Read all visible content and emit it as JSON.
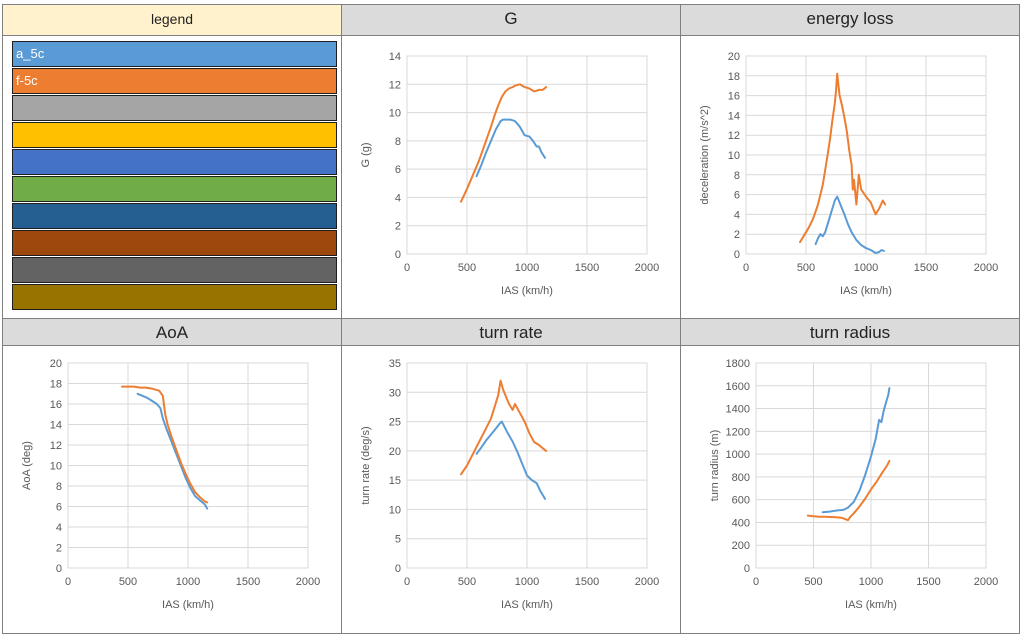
{
  "legend": {
    "header": "legend",
    "rows": [
      {
        "label": "a_5c",
        "color": "#5b9bd5"
      },
      {
        "label": "f-5c",
        "color": "#ed7d31"
      },
      {
        "label": "",
        "color": "#a5a5a5"
      },
      {
        "label": "",
        "color": "#ffc000"
      },
      {
        "label": "",
        "color": "#4472c4"
      },
      {
        "label": "",
        "color": "#70ad47"
      },
      {
        "label": "",
        "color": "#255e91"
      },
      {
        "label": "",
        "color": "#9e480e"
      },
      {
        "label": "",
        "color": "#636363"
      },
      {
        "label": "",
        "color": "#997300"
      }
    ]
  },
  "chart_data": [
    {
      "id": "g",
      "type": "line",
      "title": "G",
      "xlabel": "IAS (km/h)",
      "ylabel": "G (g)",
      "xlim": [
        0,
        2000
      ],
      "xticks": [
        0,
        500,
        1000,
        1500,
        2000
      ],
      "ylim": [
        0,
        14
      ],
      "yticks": [
        0,
        2,
        4,
        6,
        8,
        10,
        12,
        14
      ],
      "grid": true,
      "series": [
        {
          "name": "a_5c",
          "color": "#5b9bd5",
          "x": [
            580,
            620,
            660,
            700,
            740,
            780,
            800,
            830,
            860,
            900,
            940,
            980,
            1020,
            1050,
            1080,
            1100,
            1120,
            1150
          ],
          "y": [
            5.5,
            6.3,
            7.2,
            8.0,
            8.8,
            9.4,
            9.5,
            9.5,
            9.5,
            9.4,
            9.0,
            8.4,
            8.3,
            8.0,
            7.6,
            7.6,
            7.2,
            6.8
          ]
        },
        {
          "name": "f-5c",
          "color": "#ed7d31",
          "x": [
            450,
            500,
            550,
            600,
            650,
            700,
            730,
            760,
            790,
            820,
            850,
            880,
            900,
            940,
            980,
            1020,
            1060,
            1100,
            1130,
            1160
          ],
          "y": [
            3.7,
            4.6,
            5.6,
            6.6,
            7.8,
            9.0,
            9.8,
            10.5,
            11.1,
            11.5,
            11.7,
            11.8,
            11.9,
            12.0,
            11.8,
            11.7,
            11.5,
            11.6,
            11.6,
            11.8
          ]
        }
      ]
    },
    {
      "id": "energy",
      "type": "line",
      "title": "energy loss",
      "xlabel": "IAS (km/h)",
      "ylabel": "deceleration (m/s^2)",
      "xlim": [
        0,
        2000
      ],
      "xticks": [
        0,
        500,
        1000,
        1500,
        2000
      ],
      "ylim": [
        0,
        20
      ],
      "yticks": [
        0,
        2,
        4,
        6,
        8,
        10,
        12,
        14,
        16,
        18,
        20
      ],
      "grid": true,
      "series": [
        {
          "name": "a_5c",
          "color": "#5b9bd5",
          "x": [
            580,
            600,
            620,
            640,
            660,
            680,
            700,
            720,
            740,
            760,
            780,
            800,
            820,
            850,
            880,
            920,
            960,
            1000,
            1040,
            1080,
            1110,
            1130,
            1150
          ],
          "y": [
            1.0,
            1.6,
            2.0,
            1.8,
            2.2,
            3.0,
            3.8,
            4.6,
            5.4,
            5.8,
            5.2,
            4.6,
            4.0,
            3.0,
            2.2,
            1.4,
            0.9,
            0.6,
            0.4,
            0.1,
            0.2,
            0.4,
            0.3
          ]
        },
        {
          "name": "f-5c",
          "color": "#ed7d31",
          "x": [
            450,
            480,
            520,
            560,
            600,
            640,
            660,
            680,
            700,
            720,
            740,
            750,
            760,
            780,
            800,
            820,
            840,
            860,
            880,
            890,
            900,
            920,
            940,
            960,
            1000,
            1040,
            1080,
            1110,
            1140,
            1160
          ],
          "y": [
            1.2,
            1.8,
            2.6,
            3.6,
            5.0,
            7.0,
            8.5,
            10.0,
            11.6,
            13.5,
            15.2,
            16.5,
            18.2,
            16.0,
            15.0,
            13.8,
            12.4,
            10.5,
            9.0,
            6.5,
            7.5,
            5.0,
            8.0,
            6.5,
            5.8,
            5.2,
            4.0,
            4.6,
            5.4,
            5.0
          ]
        }
      ]
    },
    {
      "id": "aoa",
      "type": "line",
      "title": "AoA",
      "xlabel": "IAS (km/h)",
      "ylabel": "AoA (deg)",
      "xlim": [
        0,
        2000
      ],
      "xticks": [
        0,
        500,
        1000,
        1500,
        2000
      ],
      "ylim": [
        0,
        20
      ],
      "yticks": [
        0,
        2,
        4,
        6,
        8,
        10,
        12,
        14,
        16,
        18,
        20
      ],
      "grid": true,
      "series": [
        {
          "name": "a_5c",
          "color": "#5b9bd5",
          "x": [
            580,
            620,
            660,
            700,
            740,
            770,
            790,
            820,
            860,
            900,
            940,
            980,
            1020,
            1060,
            1100,
            1140,
            1160
          ],
          "y": [
            17.0,
            16.8,
            16.6,
            16.3,
            16.0,
            15.6,
            14.6,
            13.6,
            12.4,
            11.2,
            10.0,
            8.8,
            7.8,
            7.0,
            6.6,
            6.2,
            5.8
          ]
        },
        {
          "name": "f-5c",
          "color": "#ed7d31",
          "x": [
            450,
            500,
            550,
            600,
            650,
            700,
            730,
            760,
            790,
            810,
            830,
            860,
            900,
            940,
            980,
            1020,
            1060,
            1100,
            1140,
            1160
          ],
          "y": [
            17.7,
            17.7,
            17.7,
            17.6,
            17.6,
            17.5,
            17.4,
            17.3,
            16.8,
            15.0,
            14.0,
            12.9,
            11.6,
            10.3,
            9.2,
            8.2,
            7.4,
            6.9,
            6.5,
            6.4
          ]
        }
      ]
    },
    {
      "id": "turnrate",
      "type": "line",
      "title": "turn rate",
      "xlabel": "IAS (km/h)",
      "ylabel": "turn rate (deg/s)",
      "xlim": [
        0,
        2000
      ],
      "xticks": [
        0,
        500,
        1000,
        1500,
        2000
      ],
      "ylim": [
        0,
        35
      ],
      "yticks": [
        0,
        5,
        10,
        15,
        20,
        25,
        30,
        35
      ],
      "grid": true,
      "series": [
        {
          "name": "a_5c",
          "color": "#5b9bd5",
          "x": [
            580,
            620,
            660,
            700,
            740,
            770,
            790,
            810,
            840,
            880,
            920,
            960,
            1000,
            1040,
            1080,
            1110,
            1130,
            1150
          ],
          "y": [
            19.5,
            20.6,
            21.8,
            22.8,
            23.8,
            24.6,
            25.0,
            24.2,
            23.0,
            21.6,
            19.8,
            17.8,
            15.8,
            15.0,
            14.5,
            13.2,
            12.5,
            11.8
          ]
        },
        {
          "name": "f-5c",
          "color": "#ed7d31",
          "x": [
            450,
            500,
            550,
            600,
            650,
            700,
            730,
            760,
            780,
            800,
            820,
            850,
            880,
            900,
            940,
            980,
            1020,
            1060,
            1100,
            1140,
            1160
          ],
          "y": [
            16.0,
            17.5,
            19.5,
            21.5,
            23.5,
            25.5,
            27.5,
            29.5,
            32.0,
            30.5,
            29.5,
            28.0,
            27.0,
            28.0,
            26.5,
            25.0,
            23.0,
            21.5,
            21.0,
            20.3,
            20.0
          ]
        }
      ]
    },
    {
      "id": "radius",
      "type": "line",
      "title": "turn radius",
      "xlabel": "IAS (km/h)",
      "ylabel": "turn radius (m)",
      "xlim": [
        0,
        2000
      ],
      "xticks": [
        0,
        500,
        1000,
        1500,
        2000
      ],
      "ylim": [
        0,
        1800
      ],
      "yticks": [
        0,
        200,
        400,
        600,
        800,
        1000,
        1200,
        1400,
        1600,
        1800
      ],
      "grid": true,
      "series": [
        {
          "name": "a_5c",
          "color": "#5b9bd5",
          "x": [
            580,
            640,
            700,
            760,
            800,
            850,
            900,
            950,
            1000,
            1040,
            1070,
            1090,
            1110,
            1130,
            1150,
            1160
          ],
          "y": [
            490,
            495,
            505,
            510,
            530,
            580,
            680,
            820,
            980,
            1130,
            1300,
            1280,
            1380,
            1450,
            1520,
            1580
          ]
        },
        {
          "name": "f-5c",
          "color": "#ed7d31",
          "x": [
            450,
            500,
            550,
            600,
            650,
            700,
            750,
            800,
            820,
            850,
            900,
            950,
            1000,
            1050,
            1100,
            1140,
            1160
          ],
          "y": [
            460,
            455,
            450,
            450,
            448,
            445,
            440,
            420,
            450,
            480,
            540,
            610,
            690,
            760,
            840,
            900,
            940
          ]
        }
      ]
    }
  ]
}
